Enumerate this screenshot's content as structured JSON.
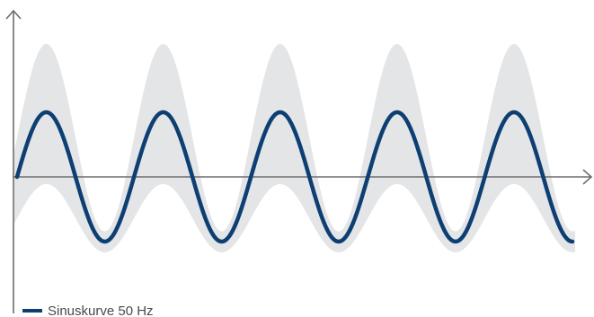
{
  "chart_data": {
    "type": "line",
    "series": [
      {
        "name": "Sinuskurve 50 Hz",
        "function": "sine",
        "frequency": 50,
        "amplitude": 1,
        "cycles_shown": 4.75,
        "color": "#0d3f73"
      }
    ],
    "band": {
      "description": "shaded envelope around sine",
      "color": "#e4e5e7"
    },
    "axes": {
      "x_arrow": true,
      "y_arrow": true,
      "tick_labels": false,
      "color": "#6e6e6e"
    },
    "legend": {
      "placement": "bottom-left",
      "label": "Sinuskurve 50 Hz",
      "color": "#0d3f73"
    },
    "title": "",
    "xlabel": "",
    "ylabel": "",
    "grid": false
  }
}
